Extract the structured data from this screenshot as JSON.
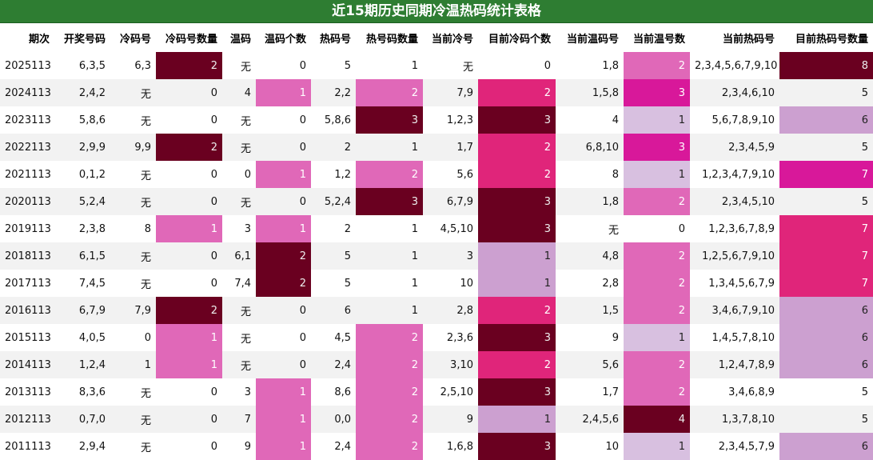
{
  "title": "近15期历史同期冷温热码统计表格",
  "headers": [
    "期次",
    "开奖号码",
    "冷码号",
    "冷码号数量",
    "温码",
    "温码个数",
    "热码号",
    "热号码数量",
    "当前冷号",
    "目前冷码个数",
    "当前温码号",
    "当前温号数",
    "当前热码号",
    "目前热码号数量"
  ],
  "rows": [
    [
      "2025113",
      "6,3,5",
      "6,3",
      "2",
      "无",
      "0",
      "5",
      "1",
      "无",
      "0",
      "1,8",
      "2",
      "2,3,4,5,6,7,9,10",
      "8"
    ],
    [
      "2024113",
      "2,4,2",
      "无",
      "0",
      "4",
      "1",
      "2,2",
      "2",
      "7,9",
      "2",
      "1,5,8",
      "3",
      "2,3,4,6,10",
      "5"
    ],
    [
      "2023113",
      "5,8,6",
      "无",
      "0",
      "无",
      "0",
      "5,8,6",
      "3",
      "1,2,3",
      "3",
      "4",
      "1",
      "5,6,7,8,9,10",
      "6"
    ],
    [
      "2022113",
      "2,9,9",
      "9,9",
      "2",
      "无",
      "0",
      "2",
      "1",
      "1,7",
      "2",
      "6,8,10",
      "3",
      "2,3,4,5,9",
      "5"
    ],
    [
      "2021113",
      "0,1,2",
      "无",
      "0",
      "0",
      "1",
      "1,2",
      "2",
      "5,6",
      "2",
      "8",
      "1",
      "1,2,3,4,7,9,10",
      "7"
    ],
    [
      "2020113",
      "5,2,4",
      "无",
      "0",
      "无",
      "0",
      "5,2,4",
      "3",
      "6,7,9",
      "3",
      "1,8",
      "2",
      "2,3,4,5,10",
      "5"
    ],
    [
      "2019113",
      "2,3,8",
      "8",
      "1",
      "3",
      "1",
      "2",
      "1",
      "4,5,10",
      "3",
      "无",
      "0",
      "1,2,3,6,7,8,9",
      "7"
    ],
    [
      "2018113",
      "6,1,5",
      "无",
      "0",
      "6,1",
      "2",
      "5",
      "1",
      "3",
      "1",
      "4,8",
      "2",
      "1,2,5,6,7,9,10",
      "7"
    ],
    [
      "2017113",
      "7,4,5",
      "无",
      "0",
      "7,4",
      "2",
      "5",
      "1",
      "10",
      "1",
      "2,8",
      "2",
      "1,3,4,5,6,7,9",
      "7"
    ],
    [
      "2016113",
      "6,7,9",
      "7,9",
      "2",
      "无",
      "0",
      "6",
      "1",
      "2,8",
      "2",
      "1,5",
      "2",
      "3,4,6,7,9,10",
      "6"
    ],
    [
      "2015113",
      "4,0,5",
      "0",
      "1",
      "无",
      "0",
      "4,5",
      "2",
      "2,3,6",
      "3",
      "9",
      "1",
      "1,4,5,7,8,10",
      "6"
    ],
    [
      "2014113",
      "1,2,4",
      "1",
      "1",
      "无",
      "0",
      "2,4",
      "2",
      "3,10",
      "2",
      "5,6",
      "2",
      "1,2,4,7,8,9",
      "6"
    ],
    [
      "2013113",
      "8,3,6",
      "无",
      "0",
      "3",
      "1",
      "8,6",
      "2",
      "2,5,10",
      "3",
      "1,7",
      "2",
      "3,4,6,8,9",
      "5"
    ],
    [
      "2012113",
      "0,7,0",
      "无",
      "0",
      "7",
      "1",
      "0,0",
      "2",
      "9",
      "1",
      "2,4,5,6",
      "4",
      "1,3,7,8,10",
      "5"
    ],
    [
      "2011113",
      "2,9,4",
      "无",
      "0",
      "9",
      "1",
      "2,4",
      "2",
      "1,6,8",
      "3",
      "10",
      "1",
      "2,3,4,5,7,9",
      "6"
    ]
  ],
  "highlights": [
    [
      null,
      null,
      null,
      "h1",
      null,
      null,
      null,
      null,
      null,
      null,
      null,
      "h4",
      null,
      "h1"
    ],
    [
      null,
      null,
      null,
      null,
      null,
      "h4",
      null,
      "h4",
      null,
      "h2",
      null,
      "h3",
      null,
      null
    ],
    [
      null,
      null,
      null,
      null,
      null,
      null,
      null,
      "h1",
      null,
      "h1",
      null,
      "h6",
      null,
      "h5"
    ],
    [
      null,
      null,
      null,
      "h1",
      null,
      null,
      null,
      null,
      null,
      "h2",
      null,
      "h3",
      null,
      null
    ],
    [
      null,
      null,
      null,
      null,
      null,
      "h4",
      null,
      "h4",
      null,
      "h2",
      null,
      "h6",
      null,
      "h3"
    ],
    [
      null,
      null,
      null,
      null,
      null,
      null,
      null,
      "h1",
      null,
      "h1",
      null,
      "h4",
      null,
      null
    ],
    [
      null,
      null,
      null,
      "h4",
      null,
      "h4",
      null,
      null,
      null,
      "h1",
      null,
      null,
      null,
      "h2"
    ],
    [
      null,
      null,
      null,
      null,
      null,
      "h1",
      null,
      null,
      null,
      "h5",
      null,
      "h4",
      null,
      "h2"
    ],
    [
      null,
      null,
      null,
      null,
      null,
      "h1",
      null,
      null,
      null,
      "h5",
      null,
      "h4",
      null,
      "h2"
    ],
    [
      null,
      null,
      null,
      "h1",
      null,
      null,
      null,
      null,
      null,
      "h2",
      null,
      "h4",
      null,
      "h5"
    ],
    [
      null,
      null,
      null,
      "h4",
      null,
      null,
      null,
      "h4",
      null,
      "h1",
      null,
      "h6",
      null,
      "h5"
    ],
    [
      null,
      null,
      null,
      "h4",
      null,
      null,
      null,
      "h4",
      null,
      "h2",
      null,
      "h4",
      null,
      "h5"
    ],
    [
      null,
      null,
      null,
      null,
      null,
      "h4",
      null,
      "h4",
      null,
      "h1",
      null,
      "h4",
      null,
      null
    ],
    [
      null,
      null,
      null,
      null,
      null,
      "h4",
      null,
      "h4",
      null,
      "h5",
      null,
      "h1",
      null,
      null
    ],
    [
      null,
      null,
      null,
      null,
      null,
      "h4",
      null,
      "h4",
      null,
      "h1",
      null,
      "h6",
      null,
      "h5"
    ]
  ],
  "colors": {
    "title_bg": "#2e7d32",
    "h1": "#6a0020",
    "h2": "#e0257a",
    "h3": "#d8189a",
    "h4": "#e068b8",
    "h5": "#cca0d0",
    "h6": "#d8c0e0"
  }
}
